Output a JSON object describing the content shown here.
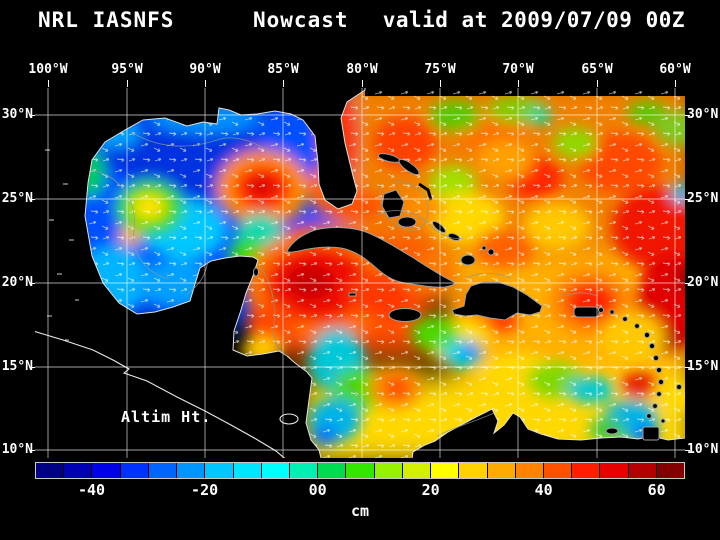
{
  "title": {
    "left": "NRL IASNFS",
    "center": "Nowcast",
    "right": "valid at 2009/07/09 00Z"
  },
  "axes": {
    "lon_labels": [
      "100°W",
      "95°W",
      "90°W",
      "85°W",
      "80°W",
      "75°W",
      "70°W",
      "65°W",
      "60°W"
    ],
    "lat_labels": [
      "30°N",
      "25°N",
      "20°N",
      "15°N",
      "10°N"
    ]
  },
  "map_annotation": "Altim Ht.",
  "colorbar": {
    "unit": "cm",
    "tick_labels": [
      "-40",
      "-20",
      "00",
      "20",
      "40",
      "60"
    ],
    "tick_values": [
      -40,
      -20,
      0,
      20,
      40,
      60
    ],
    "value_range": [
      -50,
      65
    ],
    "colors": [
      "#000082",
      "#0000b4",
      "#0000e6",
      "#0032ff",
      "#0064ff",
      "#0096ff",
      "#00c8ff",
      "#00e6ff",
      "#00ffff",
      "#00f0b4",
      "#00dc50",
      "#32e600",
      "#96f000",
      "#d2f000",
      "#ffff00",
      "#ffd200",
      "#ffaa00",
      "#ff8200",
      "#ff5000",
      "#ff1e00",
      "#e60000",
      "#b40000",
      "#820000"
    ]
  },
  "chart_data": {
    "type": "heatmap",
    "title": "NRL IASNFS Nowcast valid at 2009/07/09 00Z",
    "variable": "Altim Ht.",
    "units": "cm",
    "lon_ticks": [
      "100°W",
      "95°W",
      "90°W",
      "85°W",
      "80°W",
      "75°W",
      "70°W",
      "65°W",
      "60°W"
    ],
    "lat_ticks": [
      "30°N",
      "25°N",
      "20°N",
      "15°N",
      "10°N"
    ],
    "colorbar_ticks": [
      -40,
      -20,
      0,
      20,
      40,
      60
    ],
    "value_range_cm": [
      -50,
      65
    ],
    "readings": [
      {
        "region": "Gulf of Mexico interior",
        "approx_cm": -30
      },
      {
        "region": "Loop Current warm eddy near 87W 25.5N",
        "approx_cm": 55
      },
      {
        "region": "northwest Caribbean near 80W 19N",
        "approx_cm": 55
      },
      {
        "region": "Atlantic east of 75W",
        "approx_cm": 30
      },
      {
        "region": "right edge near 61W 22N",
        "approx_cm": 60
      },
      {
        "region": "central Caribbean near 73W 14N",
        "approx_cm": -5
      },
      {
        "region": "southwest Caribbean off Nicaragua",
        "approx_cm": -10
      }
    ],
    "field_rects": [
      [
        300,
        -15,
        365,
        225,
        "#f08000"
      ],
      [
        20,
        12,
        282,
        224,
        "#0048ff"
      ],
      [
        238,
        148,
        160,
        122,
        "#ff5000"
      ],
      [
        418,
        166,
        245,
        136,
        "#ffb000"
      ],
      [
        266,
        286,
        396,
        92,
        "#ffd800"
      ]
    ],
    "field_blobs": [
      [
        150,
        72,
        85,
        48,
        "#0030e0"
      ],
      [
        70,
        148,
        46,
        68,
        "#0050ff"
      ],
      [
        78,
        192,
        36,
        34,
        "#00b4ff"
      ],
      [
        142,
        196,
        40,
        24,
        "#00a0ff"
      ],
      [
        150,
        142,
        42,
        30,
        "#00c8ff"
      ],
      [
        115,
        120,
        34,
        28,
        "#30d800"
      ],
      [
        114,
        119,
        17,
        13,
        "#ffe400"
      ],
      [
        80,
        45,
        26,
        15,
        "#00a0ff"
      ],
      [
        55,
        85,
        16,
        24,
        "#00c864"
      ],
      [
        95,
        148,
        11,
        9,
        "#ffb400"
      ],
      [
        265,
        55,
        38,
        38,
        "#0050ff"
      ],
      [
        170,
        30,
        55,
        16,
        "#0090ff"
      ],
      [
        228,
        100,
        46,
        38,
        "#ff9000"
      ],
      [
        228,
        100,
        29,
        23,
        "#ff2400"
      ],
      [
        227,
        99,
        13,
        10,
        "#d40000"
      ],
      [
        225,
        155,
        26,
        30,
        "#00d8b4"
      ],
      [
        213,
        170,
        20,
        20,
        "#38d800"
      ],
      [
        250,
        196,
        20,
        14,
        "#ffd800"
      ],
      [
        303,
        52,
        17,
        42,
        "#ff3000"
      ],
      [
        300,
        22,
        14,
        24,
        "#ff3000"
      ],
      [
        296,
        100,
        22,
        24,
        "#ff6000"
      ],
      [
        322,
        118,
        28,
        13,
        "#ff5000"
      ],
      [
        370,
        55,
        32,
        26,
        "#ff4000"
      ],
      [
        455,
        45,
        36,
        20,
        "#ff7000"
      ],
      [
        500,
        90,
        28,
        22,
        "#ff2800"
      ],
      [
        585,
        75,
        42,
        30,
        "#ff4800"
      ],
      [
        625,
        140,
        48,
        42,
        "#f01800"
      ],
      [
        643,
        212,
        42,
        46,
        "#e00000"
      ],
      [
        657,
        190,
        16,
        12,
        "#980000"
      ],
      [
        628,
        252,
        18,
        14,
        "#a80000"
      ],
      [
        420,
        28,
        26,
        16,
        "#58c800"
      ],
      [
        482,
        22,
        30,
        14,
        "#80cc00"
      ],
      [
        540,
        55,
        22,
        16,
        "#90d800"
      ],
      [
        612,
        25,
        20,
        12,
        "#58c800"
      ],
      [
        418,
        95,
        24,
        18,
        "#a0e000"
      ],
      [
        432,
        130,
        38,
        26,
        "#ffd800"
      ],
      [
        522,
        138,
        34,
        24,
        "#ffc800"
      ],
      [
        470,
        72,
        28,
        20,
        "#ffa000"
      ],
      [
        505,
        28,
        12,
        9,
        "#00d8a0"
      ],
      [
        645,
        40,
        26,
        18,
        "#80c820"
      ],
      [
        648,
        105,
        13,
        10,
        "#00b4e6"
      ],
      [
        390,
        120,
        20,
        15,
        "#ff9000"
      ],
      [
        470,
        160,
        30,
        20,
        "#ff6000"
      ],
      [
        285,
        197,
        75,
        55,
        "#ff7000"
      ],
      [
        282,
        196,
        52,
        38,
        "#f01000"
      ],
      [
        276,
        194,
        24,
        17,
        "#c80000"
      ],
      [
        345,
        207,
        33,
        23,
        "#ff3800"
      ],
      [
        237,
        237,
        24,
        22,
        "#ff4800"
      ],
      [
        227,
        262,
        20,
        14,
        "#ffc800"
      ],
      [
        392,
        186,
        28,
        18,
        "#ff7800"
      ],
      [
        452,
        216,
        34,
        21,
        "#ff8800"
      ],
      [
        468,
        232,
        16,
        12,
        "#ff3800"
      ],
      [
        556,
        214,
        42,
        34,
        "#ff8800"
      ],
      [
        556,
        214,
        26,
        20,
        "#ff2000"
      ],
      [
        420,
        252,
        33,
        23,
        "#ffe000"
      ],
      [
        400,
        246,
        24,
        18,
        "#50d800"
      ],
      [
        428,
        266,
        20,
        14,
        "#00d8e6"
      ],
      [
        436,
        263,
        11,
        8,
        "#0080ff"
      ],
      [
        302,
        272,
        28,
        32,
        "#00c8d8"
      ],
      [
        322,
        302,
        24,
        22,
        "#48d800"
      ],
      [
        300,
        332,
        26,
        22,
        "#00b4e6"
      ],
      [
        290,
        348,
        14,
        10,
        "#0070ff"
      ],
      [
        360,
        300,
        26,
        20,
        "#ff8800"
      ],
      [
        362,
        300,
        12,
        9,
        "#ff3000"
      ],
      [
        482,
        287,
        38,
        22,
        "#ffd800"
      ],
      [
        520,
        292,
        28,
        18,
        "#80d800"
      ],
      [
        556,
        302,
        24,
        13,
        "#00c8d8"
      ],
      [
        596,
        332,
        28,
        20,
        "#00b4e6"
      ],
      [
        572,
        342,
        18,
        13,
        "#40c840"
      ],
      [
        610,
        347,
        13,
        9,
        "#0066ff"
      ],
      [
        604,
        296,
        18,
        14,
        "#e62000"
      ],
      [
        600,
        266,
        11,
        8,
        "#980000"
      ],
      [
        598,
        250,
        32,
        26,
        "#ffc800"
      ],
      [
        640,
        310,
        20,
        15,
        "#ffd800"
      ]
    ]
  }
}
